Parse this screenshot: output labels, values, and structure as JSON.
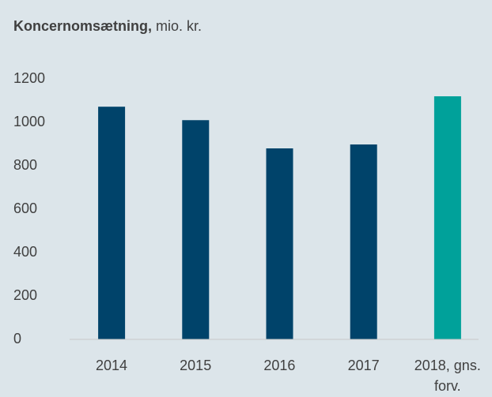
{
  "chart_data": {
    "type": "bar",
    "title": "Koncernomsætning,",
    "unit": "mio. kr.",
    "categories": [
      "2014",
      "2015",
      "2016",
      "2017",
      "2018, gns. forv."
    ],
    "values": [
      1072,
      1010,
      880,
      898,
      1120
    ],
    "colors": [
      "#00436a",
      "#00436a",
      "#00436a",
      "#00436a",
      "#00a19a"
    ],
    "ylim": [
      0,
      1200
    ],
    "yticks": [
      0,
      200,
      400,
      600,
      800,
      1000,
      1200
    ],
    "grid": false
  }
}
